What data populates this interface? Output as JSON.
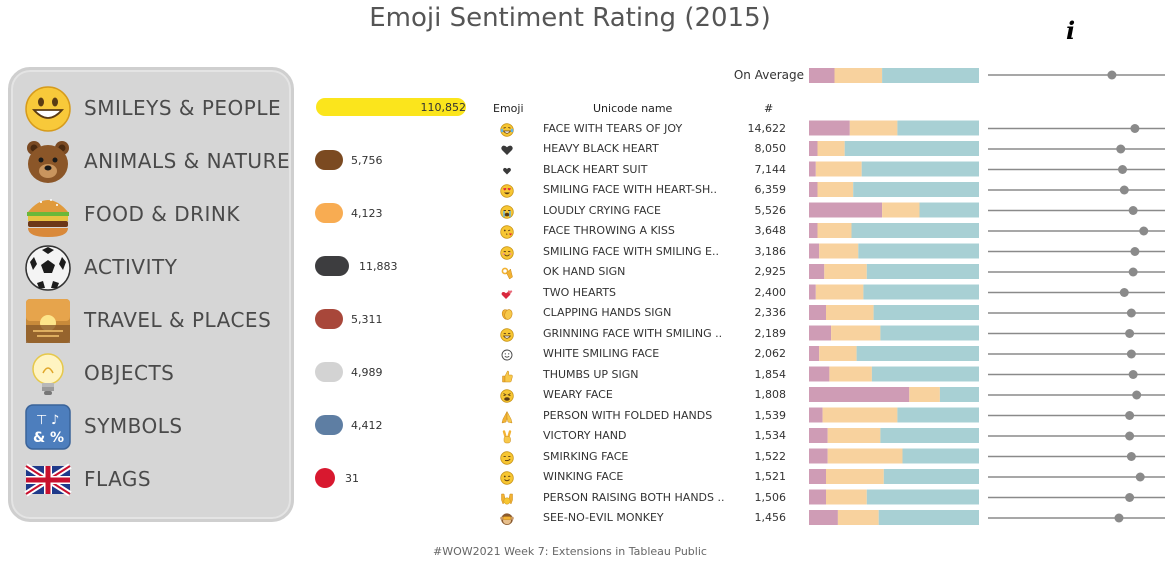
{
  "title": "Emoji Sentiment Rating (2015)",
  "info_icon": "info-icon",
  "footer": "#WOW2021 Week 7: Extensions in Tableau Public",
  "colors": {
    "negative": "#cf9cb5",
    "neutral": "#f8d29e",
    "positive": "#a8d0d4",
    "dot": "#8a8a8a",
    "line": "#8a8a8a"
  },
  "categories": [
    {
      "label": "SMILEYS & PEOPLE",
      "icon": "grinning-face-icon"
    },
    {
      "label": "ANIMALS & NATURE",
      "icon": "bear-face-icon"
    },
    {
      "label": "FOOD & DRINK",
      "icon": "hamburger-icon"
    },
    {
      "label": "ACTIVITY",
      "icon": "soccer-ball-icon"
    },
    {
      "label": "TRAVEL & PLACES",
      "icon": "sunrise-icon"
    },
    {
      "label": "OBJECTS",
      "icon": "light-bulb-icon"
    },
    {
      "label": "SYMBOLS",
      "icon": "input-symbols-icon"
    },
    {
      "label": "FLAGS",
      "icon": "uk-flag-icon"
    }
  ],
  "columns": {
    "emoji": "Emoji",
    "name": "Unicode name",
    "count": "#"
  },
  "average_label": "On Average",
  "chart_data": [
    {
      "type": "bar",
      "title": "",
      "categories": [
        "SMILEYS & PEOPLE",
        "ANIMALS & NATURE",
        "FOOD & DRINK",
        "ACTIVITY",
        "TRAVEL & PLACES",
        "OBJECTS",
        "SYMBOLS",
        "FLAGS"
      ],
      "values": [
        110852,
        5756,
        4123,
        11883,
        5311,
        4989,
        4412,
        31
      ],
      "labels": [
        "110,852",
        "5,756",
        "4,123",
        "11,883",
        "5,311",
        "4,989",
        "4,412",
        "31"
      ],
      "colors": [
        "#fbe51c",
        "#7b4a21",
        "#f8ac52",
        "#3d3d3f",
        "#a8473a",
        "#d3d3d3",
        "#5e7ea3",
        "#d8182f"
      ]
    },
    {
      "type": "bar",
      "stacked": true,
      "xlim": [
        0,
        1
      ],
      "series_names": [
        "negative",
        "neutral",
        "positive"
      ],
      "average": {
        "negative": 0.15,
        "neutral": 0.28,
        "positive": 0.57,
        "score": 0.7
      },
      "rows": [
        {
          "icon": "face-with-tears-of-joy-icon",
          "name": "FACE WITH TEARS OF JOY",
          "count": "14,622",
          "negative": 0.24,
          "neutral": 0.28,
          "positive": 0.48,
          "score": 0.83
        },
        {
          "icon": "heavy-black-heart-icon",
          "name": "HEAVY BLACK HEART",
          "count": "8,050",
          "negative": 0.05,
          "neutral": 0.16,
          "positive": 0.79,
          "score": 0.75
        },
        {
          "icon": "black-heart-suit-icon",
          "name": "BLACK HEART SUIT",
          "count": "7,144",
          "negative": 0.04,
          "neutral": 0.27,
          "positive": 0.69,
          "score": 0.76
        },
        {
          "icon": "heart-eyes-icon",
          "name": "SMILING FACE WITH HEART-SH..",
          "count": "6,359",
          "negative": 0.05,
          "neutral": 0.21,
          "positive": 0.74,
          "score": 0.77
        },
        {
          "icon": "loudly-crying-face-icon",
          "name": "LOUDLY CRYING FACE",
          "count": "5,526",
          "negative": 0.43,
          "neutral": 0.22,
          "positive": 0.35,
          "score": 0.82
        },
        {
          "icon": "face-throwing-kiss-icon",
          "name": "FACE THROWING A KISS",
          "count": "3,648",
          "negative": 0.05,
          "neutral": 0.2,
          "positive": 0.75,
          "score": 0.88
        },
        {
          "icon": "smiling-face-smiling-eyes-icon",
          "name": "SMILING FACE WITH SMILING E..",
          "count": "3,186",
          "negative": 0.06,
          "neutral": 0.23,
          "positive": 0.71,
          "score": 0.83
        },
        {
          "icon": "ok-hand-icon",
          "name": "OK HAND SIGN",
          "count": "2,925",
          "negative": 0.09,
          "neutral": 0.25,
          "positive": 0.66,
          "score": 0.82
        },
        {
          "icon": "two-hearts-icon",
          "name": "TWO HEARTS",
          "count": "2,400",
          "negative": 0.04,
          "neutral": 0.28,
          "positive": 0.68,
          "score": 0.77
        },
        {
          "icon": "clapping-hands-icon",
          "name": "CLAPPING HANDS SIGN",
          "count": "2,336",
          "negative": 0.1,
          "neutral": 0.28,
          "positive": 0.62,
          "score": 0.81
        },
        {
          "icon": "grinning-face-smiling-eyes-icon",
          "name": "GRINNING FACE WITH SMILING ..",
          "count": "2,189",
          "negative": 0.13,
          "neutral": 0.29,
          "positive": 0.58,
          "score": 0.8
        },
        {
          "icon": "white-smiling-face-icon",
          "name": "WHITE SMILING FACE",
          "count": "2,062",
          "negative": 0.06,
          "neutral": 0.22,
          "positive": 0.72,
          "score": 0.81
        },
        {
          "icon": "thumbs-up-icon",
          "name": "THUMBS UP SIGN",
          "count": "1,854",
          "negative": 0.12,
          "neutral": 0.25,
          "positive": 0.63,
          "score": 0.82
        },
        {
          "icon": "weary-face-icon",
          "name": "WEARY FACE",
          "count": "1,808",
          "negative": 0.59,
          "neutral": 0.18,
          "positive": 0.23,
          "score": 0.84
        },
        {
          "icon": "folded-hands-icon",
          "name": "PERSON WITH FOLDED HANDS",
          "count": "1,539",
          "negative": 0.08,
          "neutral": 0.44,
          "positive": 0.48,
          "score": 0.8
        },
        {
          "icon": "victory-hand-icon",
          "name": "VICTORY HAND",
          "count": "1,534",
          "negative": 0.11,
          "neutral": 0.31,
          "positive": 0.58,
          "score": 0.8
        },
        {
          "icon": "smirking-face-icon",
          "name": "SMIRKING FACE",
          "count": "1,522",
          "negative": 0.11,
          "neutral": 0.44,
          "positive": 0.45,
          "score": 0.81
        },
        {
          "icon": "winking-face-icon",
          "name": "WINKING FACE",
          "count": "1,521",
          "negative": 0.1,
          "neutral": 0.34,
          "positive": 0.56,
          "score": 0.86
        },
        {
          "icon": "raising-both-hands-icon",
          "name": "PERSON RAISING BOTH HANDS ..",
          "count": "1,506",
          "negative": 0.1,
          "neutral": 0.24,
          "positive": 0.66,
          "score": 0.8
        },
        {
          "icon": "see-no-evil-monkey-icon",
          "name": "SEE-NO-EVIL MONKEY",
          "count": "1,456",
          "negative": 0.17,
          "neutral": 0.24,
          "positive": 0.59,
          "score": 0.74
        }
      ]
    }
  ]
}
